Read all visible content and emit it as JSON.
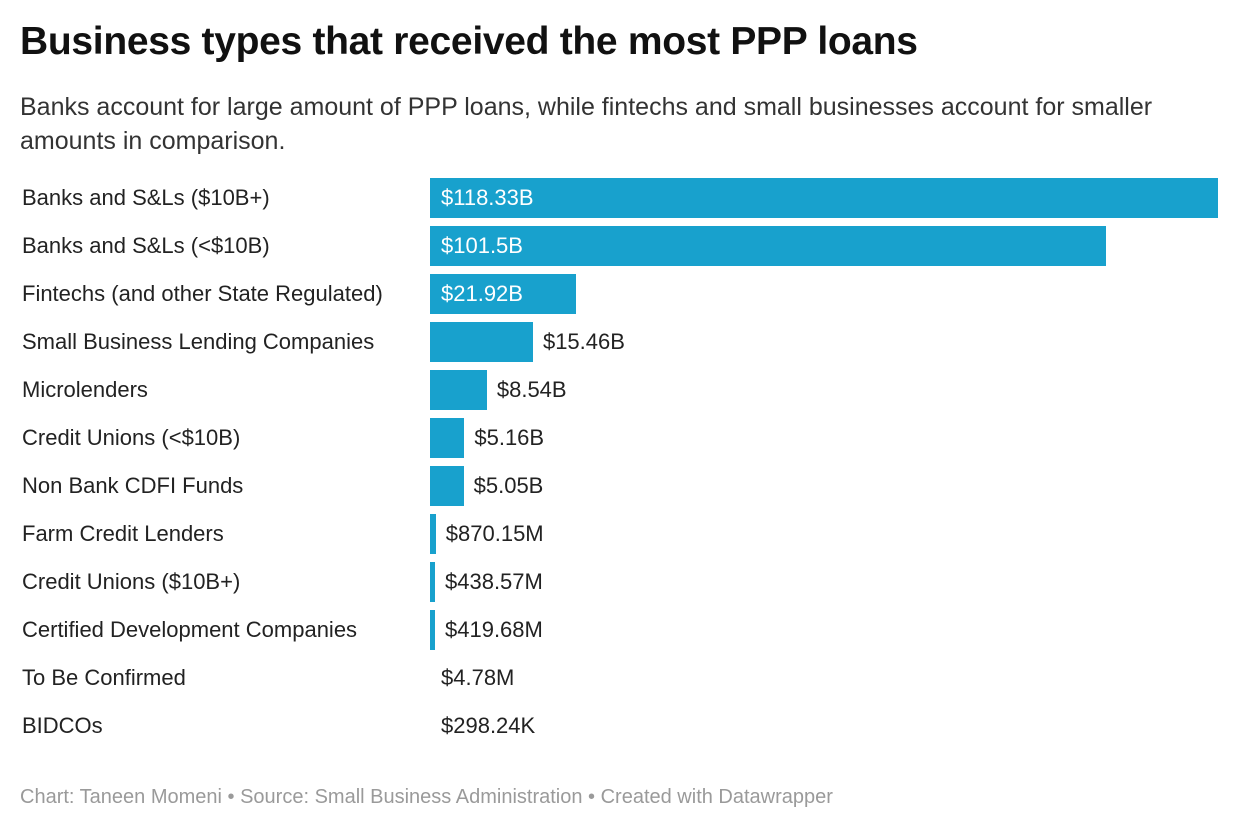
{
  "title": "Business types that received the most PPP loans",
  "subtitle": "Banks account for large amount of PPP loans, while fintechs and small businesses account for smaller amounts in comparison.",
  "colors": {
    "bar": "#18a1cd"
  },
  "chart_data": {
    "type": "bar",
    "orientation": "horizontal",
    "unit": "USD",
    "title": "Business types that received the most PPP loans",
    "subtitle": "Banks account for large amount of PPP loans, while fintechs and small businesses account for smaller amounts in comparison.",
    "categories": [
      "Banks and S&Ls ($10B+)",
      "Banks and S&Ls (<$10B)",
      "Fintechs (and other State Regulated)",
      "Small Business Lending Companies",
      "Microlenders",
      "Credit Unions (<$10B)",
      "Non Bank CDFI Funds",
      "Farm Credit Lenders",
      "Credit Unions ($10B+)",
      "Certified Development Companies",
      "To Be Confirmed",
      "BIDCOs"
    ],
    "values": [
      118330000000,
      101500000000,
      21920000000,
      15460000000,
      8540000000,
      5160000000,
      5050000000,
      870150000,
      438570000,
      419680000,
      4780000,
      298240
    ],
    "value_labels": [
      "$118.33B",
      "$101.5B",
      "$21.92B",
      "$15.46B",
      "$8.54B",
      "$5.16B",
      "$5.05B",
      "$870.15M",
      "$438.57M",
      "$419.68M",
      "$4.78M",
      "$298.24K"
    ],
    "xlim": [
      0,
      118330000000
    ],
    "grid": false,
    "legend": "none"
  },
  "footer": {
    "credit": "Chart: Taneen Momeni",
    "source": "Source: Small Business Administration",
    "created": "Created with Datawrapper",
    "separator": " • "
  }
}
